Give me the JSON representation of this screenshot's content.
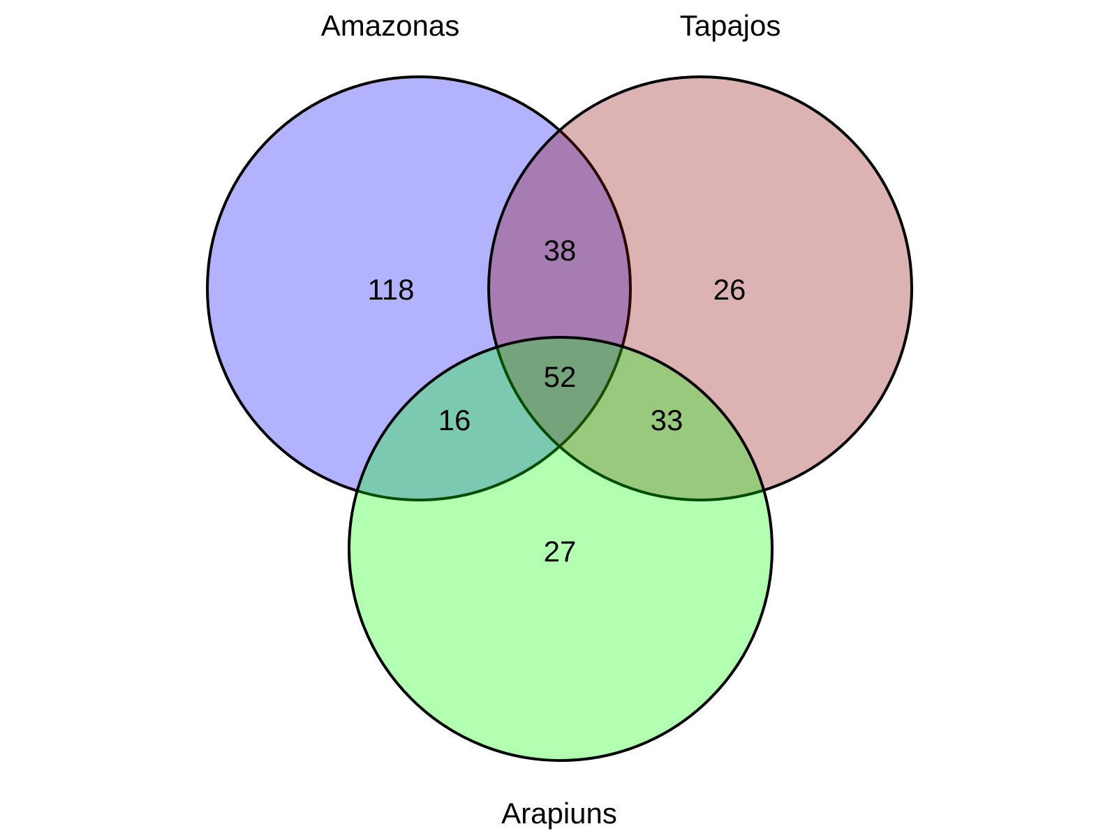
{
  "diagram": {
    "type": "venn",
    "sets": [
      {
        "key": "amazonas",
        "label": "Amazonas",
        "color": "#0000ff"
      },
      {
        "key": "tapajos",
        "label": "Tapajos",
        "color": "#8b0000"
      },
      {
        "key": "arapiuns",
        "label": "Arapiuns",
        "color": "#00ff00"
      }
    ],
    "regions": {
      "amazonas_only": "118",
      "tapajos_only": "26",
      "arapiuns_only": "27",
      "amazonas_tapajos": "38",
      "amazonas_arapiuns": "16",
      "tapajos_arapiuns": "33",
      "all_three": "52"
    }
  }
}
